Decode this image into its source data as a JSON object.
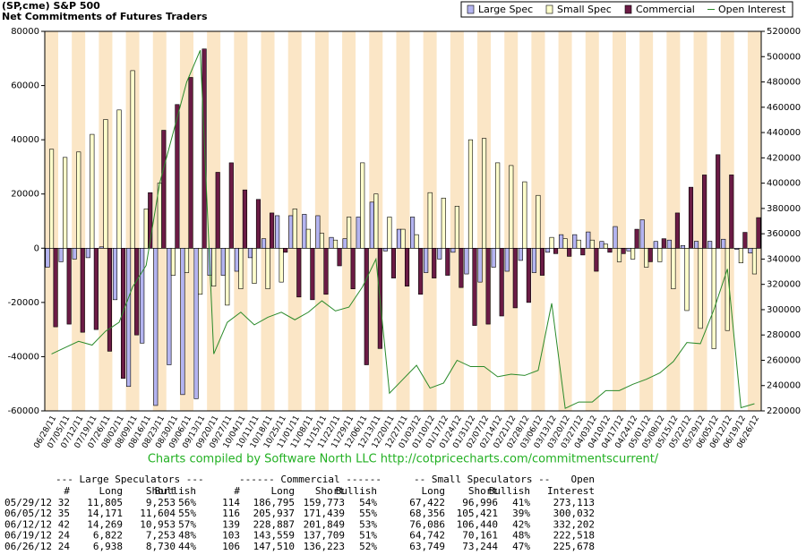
{
  "chart_data": {
    "type": "bar",
    "title": "(SP,cme) S&P 500",
    "subtitle": "Net Commitments of Futures Traders",
    "categories": [
      "06/28/11",
      "07/05/11",
      "07/12/11",
      "07/19/11",
      "07/26/11",
      "08/02/11",
      "08/09/11",
      "08/16/11",
      "08/23/11",
      "08/30/11",
      "09/06/11",
      "09/13/11",
      "09/20/11",
      "09/27/11",
      "10/04/11",
      "10/11/11",
      "10/18/11",
      "10/25/11",
      "11/01/11",
      "11/08/11",
      "11/15/11",
      "11/22/11",
      "11/29/11",
      "12/06/11",
      "12/13/11",
      "12/20/11",
      "12/27/11",
      "01/03/12",
      "01/10/12",
      "01/17/12",
      "01/24/12",
      "01/31/12",
      "02/07/12",
      "02/14/12",
      "02/21/12",
      "02/28/12",
      "03/06/12",
      "03/13/12",
      "03/20/12",
      "03/27/12",
      "04/03/12",
      "04/10/12",
      "04/17/12",
      "04/24/12",
      "05/01/12",
      "05/08/12",
      "05/15/12",
      "05/22/12",
      "05/29/12",
      "06/05/12",
      "06/12/12",
      "06/19/12",
      "06/26/12"
    ],
    "series": [
      {
        "name": "Large Spec",
        "color": "#b4b4f0",
        "values": [
          -7000,
          -5000,
          -4000,
          -3500,
          500,
          -19000,
          -51000,
          -35000,
          -58000,
          -43000,
          -54000,
          -55500,
          -10000,
          -10000,
          -8500,
          -3500,
          3500,
          12000,
          12000,
          12500,
          12000,
          4000,
          3500,
          11500,
          17000,
          -1000,
          7000,
          11500,
          -9000,
          -4000,
          -1500,
          -9500,
          -12500,
          -7000,
          -8500,
          -4500,
          -9000,
          -1500,
          5000,
          5000,
          6000,
          2500,
          8000,
          -1000,
          10500,
          2500,
          3000,
          1000,
          2552,
          2567,
          3316,
          -431,
          -1792
        ]
      },
      {
        "name": "Small Spec",
        "color": "#ffffcc",
        "values": [
          36500,
          33500,
          35500,
          42000,
          47500,
          51000,
          65500,
          14500,
          24000,
          -10000,
          -9000,
          -17000,
          -14000,
          -21000,
          -15000,
          -13000,
          -15000,
          -12500,
          14500,
          7000,
          5500,
          3000,
          11500,
          31500,
          20000,
          11500,
          7000,
          5000,
          20500,
          18500,
          15500,
          40000,
          40500,
          31500,
          30500,
          24500,
          19500,
          4000,
          3500,
          3000,
          3000,
          1500,
          -5000,
          -4000,
          -7000,
          -5000,
          -15000,
          -23000,
          -29574,
          -37065,
          -30354,
          -5419,
          -9495
        ]
      },
      {
        "name": "Commercial",
        "color": "#6b1b45",
        "values": [
          -29000,
          -28000,
          -31000,
          -30000,
          -38000,
          -48000,
          -32000,
          20500,
          43500,
          53000,
          63000,
          73500,
          28000,
          31500,
          21500,
          18000,
          13000,
          -1500,
          -18000,
          -19000,
          -17000,
          -6500,
          -15000,
          -43000,
          -37000,
          -11000,
          -14000,
          -17000,
          -11000,
          -10000,
          -14500,
          -28500,
          -28000,
          -25000,
          -22000,
          -20000,
          -10000,
          -2000,
          -3000,
          -2500,
          -8500,
          -1500,
          -2000,
          7000,
          -5000,
          3500,
          13000,
          22500,
          27022,
          34498,
          27038,
          5850,
          11287
        ]
      },
      {
        "name": "Open Interest",
        "color": "#2a8a2a",
        "axis": "y2",
        "values": [
          265000,
          270000,
          275000,
          272000,
          283000,
          290000,
          318000,
          335000,
          400000,
          440000,
          480000,
          505000,
          265000,
          290000,
          298000,
          288000,
          294000,
          298000,
          292000,
          298000,
          307000,
          299000,
          302000,
          318000,
          340000,
          234000,
          245000,
          256000,
          238000,
          242000,
          260000,
          255000,
          255000,
          247000,
          249000,
          248000,
          252000,
          305000,
          222000,
          227000,
          227000,
          236000,
          236000,
          241000,
          245000,
          250000,
          259000,
          274000,
          273113,
          300032,
          332202,
          222518,
          225678
        ]
      }
    ],
    "ylim": [
      -60000,
      80000
    ],
    "yticks": [
      -60000,
      -40000,
      -20000,
      0,
      20000,
      40000,
      60000,
      80000
    ],
    "y2lim": [
      220000,
      520000
    ],
    "y2ticks": [
      220000,
      240000,
      260000,
      280000,
      300000,
      320000,
      340000,
      360000,
      380000,
      400000,
      420000,
      440000,
      460000,
      480000,
      500000,
      520000
    ],
    "legend": "top-right"
  },
  "footer": "Charts compiled by Software North LLC  http://cotpricecharts.com/commitmentscurrent/",
  "table": {
    "groups": [
      "--- Large Speculators ---",
      "------ Commercial ------",
      "-- Small Speculators --",
      "Open"
    ],
    "columns": [
      "#",
      "Long",
      "Short",
      "Bullish",
      "#",
      "Long",
      "Short",
      "Bullish",
      "Long",
      "Short",
      "Bullish",
      "Interest"
    ],
    "rows": [
      [
        "05/29/12",
        "32",
        "11,805",
        "9,253",
        "56%",
        "114",
        "186,795",
        "159,773",
        "54%",
        "67,422",
        "96,996",
        "41%",
        "273,113"
      ],
      [
        "06/05/12",
        "35",
        "14,171",
        "11,604",
        "55%",
        "116",
        "205,937",
        "171,439",
        "55%",
        "68,356",
        "105,421",
        "39%",
        "300,032"
      ],
      [
        "06/12/12",
        "42",
        "14,269",
        "10,953",
        "57%",
        "139",
        "228,887",
        "201,849",
        "53%",
        "76,086",
        "106,440",
        "42%",
        "332,202"
      ],
      [
        "06/19/12",
        "24",
        "6,822",
        "7,253",
        "48%",
        "103",
        "143,559",
        "137,709",
        "51%",
        "64,742",
        "70,161",
        "48%",
        "222,518"
      ],
      [
        "06/26/12",
        "24",
        "6,938",
        "8,730",
        "44%",
        "106",
        "147,510",
        "136,223",
        "52%",
        "63,749",
        "73,244",
        "47%",
        "225,678"
      ]
    ]
  }
}
